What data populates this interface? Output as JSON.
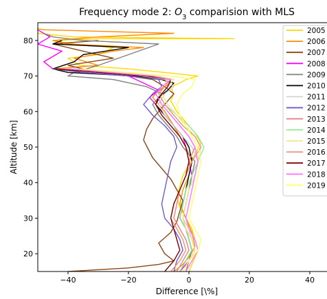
{
  "chart_data": {
    "type": "line",
    "title_prefix": "Frequency mode 2: ",
    "title_species": "O",
    "title_subscript": "3",
    "title_suffix": " comparision with MLS",
    "xlabel": "Difference [\\%]",
    "ylabel": "Altitude [km]",
    "xlim": [
      -50,
      50
    ],
    "ylim": [
      15,
      85
    ],
    "xticks": [
      -40,
      -20,
      0,
      20,
      40
    ],
    "yticks": [
      20,
      30,
      40,
      50,
      60,
      70,
      80
    ],
    "legend_position": "top-right",
    "grid": false,
    "series": [
      {
        "name": "2005",
        "color": "#FFD700",
        "x": [
          0,
          1,
          2,
          3,
          2,
          1,
          -1,
          -3,
          -4,
          -3,
          -2,
          0,
          2,
          4,
          2,
          -1,
          -4,
          -6,
          -5,
          -6,
          -3,
          -1,
          3,
          -8,
          -20,
          -36,
          -40,
          -30,
          -25,
          -38,
          -45,
          -30,
          15,
          -38,
          -50
        ],
        "y": [
          15,
          17,
          19,
          21,
          24,
          27,
          30,
          33,
          36,
          39,
          42,
          45,
          48,
          51,
          54,
          57,
          60,
          63,
          65,
          67,
          68,
          69,
          70,
          71,
          72,
          73,
          75,
          76,
          78,
          79,
          80,
          80.5,
          80.5,
          81,
          82
        ]
      },
      {
        "name": "2006",
        "color": "#FF8C00",
        "x": [
          -5,
          -2,
          0,
          2,
          1,
          -1,
          -3,
          -2,
          0,
          1,
          -1,
          -3,
          -5,
          -8,
          -10,
          -12,
          -10,
          -6,
          -12,
          -20,
          -45,
          -30,
          -38,
          -25,
          -15,
          -40,
          -45,
          -30,
          -5,
          -48,
          -55
        ],
        "y": [
          15,
          17,
          19,
          22,
          26,
          30,
          34,
          38,
          42,
          46,
          50,
          53,
          56,
          60,
          62,
          64,
          66,
          68,
          70,
          71,
          72,
          73,
          75,
          77,
          78,
          79,
          80,
          81,
          82,
          83,
          84
        ]
      },
      {
        "name": "2007",
        "color": "#8B4513",
        "x": [
          -40,
          -20,
          -10,
          -5,
          -8,
          -10,
          -6,
          -4,
          -3,
          -2,
          -4,
          -6,
          -9,
          -12,
          -15,
          -14,
          -12,
          -9,
          -7,
          -5,
          -8,
          -12,
          -20,
          -30,
          -35,
          -40,
          -25,
          -35,
          -45,
          -30
        ],
        "y": [
          15,
          16,
          17,
          18,
          20,
          23,
          26,
          29,
          32,
          35,
          38,
          41,
          44,
          47,
          52,
          55,
          58,
          61,
          63,
          65,
          67,
          69,
          70,
          71,
          72,
          73,
          75,
          77,
          79,
          80
        ]
      },
      {
        "name": "2008",
        "color": "#FF00FF",
        "x": [
          -3,
          0,
          2,
          1,
          -1,
          -2,
          -1,
          0,
          1,
          0,
          -1,
          -2,
          -5,
          -8,
          -11,
          -13,
          -10,
          -15,
          -20,
          -35,
          -45,
          -48,
          -42,
          -50,
          -46,
          -50
        ],
        "y": [
          15,
          18,
          21,
          24,
          27,
          30,
          34,
          38,
          42,
          46,
          50,
          53,
          56,
          59,
          62,
          64,
          66,
          68,
          70,
          71,
          72,
          74,
          77,
          79,
          81,
          83
        ]
      },
      {
        "name": "2009",
        "color": "#808080",
        "x": [
          -1,
          0,
          1,
          0,
          -1,
          -2,
          -1,
          0,
          1,
          2,
          0,
          -2,
          -4,
          -7,
          -10,
          -12,
          -9,
          -14,
          -25,
          -40,
          -38,
          -30,
          -20,
          -10,
          -35,
          -45,
          -48
        ],
        "y": [
          15,
          18,
          21,
          24,
          27,
          30,
          34,
          38,
          42,
          46,
          48,
          50,
          53,
          56,
          59,
          62,
          65,
          67,
          69,
          70,
          71,
          73,
          76,
          79,
          80,
          81,
          82
        ]
      },
      {
        "name": "2010",
        "color": "#000000",
        "x": [
          -3,
          -1,
          1,
          0,
          -1,
          -3,
          -2,
          -1,
          0,
          1,
          0,
          -2,
          -5,
          -8,
          -11,
          -10,
          -7,
          -5,
          -9,
          -18,
          -40,
          -45,
          -38,
          -35,
          -20,
          -45,
          -42
        ],
        "y": [
          15,
          18,
          21,
          24,
          27,
          30,
          34,
          38,
          42,
          46,
          50,
          53,
          56,
          59,
          62,
          64,
          66,
          68,
          69,
          70,
          71,
          72,
          74,
          76,
          78,
          79,
          80
        ]
      },
      {
        "name": "2011",
        "color": "#D3D3D3",
        "x": [
          -2,
          0,
          2,
          1,
          0,
          -2,
          -1,
          0,
          2,
          3,
          1,
          -2,
          -5,
          -8,
          -10,
          -8,
          -5,
          -8,
          -15,
          -30,
          -42
        ],
        "y": [
          15,
          18,
          21,
          24,
          27,
          30,
          34,
          38,
          42,
          46,
          50,
          53,
          56,
          59,
          62,
          65,
          67,
          69,
          70,
          71,
          72
        ]
      },
      {
        "name": "2012",
        "color": "#6A5ACD",
        "x": [
          -5,
          -4,
          -2,
          -3,
          -5,
          -8,
          -9,
          -8,
          -7,
          -6,
          -4,
          -5,
          -8,
          -12,
          -15,
          -12,
          -9,
          -10,
          -20,
          -35,
          -45
        ],
        "y": [
          15,
          18,
          21,
          24,
          27,
          30,
          34,
          38,
          42,
          46,
          50,
          53,
          56,
          59,
          62,
          65,
          67,
          69,
          70,
          71,
          72
        ]
      },
      {
        "name": "2013",
        "color": "#F08080",
        "x": [
          -4,
          -2,
          0,
          -1,
          -3,
          -5,
          -4,
          -3,
          -1,
          0,
          2,
          0,
          -3,
          -6,
          -9,
          -11,
          -8,
          -6,
          -12,
          -25,
          -40
        ],
        "y": [
          15,
          18,
          21,
          24,
          27,
          30,
          34,
          38,
          42,
          46,
          50,
          53,
          56,
          59,
          62,
          65,
          67,
          69,
          70,
          71,
          72
        ]
      },
      {
        "name": "2014",
        "color": "#90EE90",
        "x": [
          -3,
          -1,
          1,
          0,
          -1,
          -3,
          -2,
          -1,
          1,
          3,
          5,
          3,
          0,
          -4,
          -8,
          -10,
          -8,
          -6,
          -12,
          -25,
          -38
        ],
        "y": [
          15,
          18,
          21,
          24,
          27,
          30,
          34,
          38,
          42,
          46,
          50,
          53,
          56,
          59,
          62,
          65,
          67,
          69,
          70,
          71,
          72
        ]
      },
      {
        "name": "2015",
        "color": "#F0E68C",
        "x": [
          -2,
          0,
          2,
          1,
          -1,
          -2,
          -1,
          0,
          2,
          3,
          4,
          2,
          -1,
          -4,
          -7,
          -9,
          -7,
          -5,
          -10,
          -22,
          -35
        ],
        "y": [
          15,
          18,
          21,
          24,
          27,
          30,
          34,
          38,
          42,
          46,
          50,
          53,
          56,
          59,
          62,
          65,
          67,
          69,
          70,
          71,
          72
        ]
      },
      {
        "name": "2016",
        "color": "#E9967A",
        "x": [
          -6,
          -3,
          -1,
          -2,
          -4,
          -6,
          -5,
          -3,
          -1,
          1,
          4,
          2,
          -2,
          -5,
          -8,
          -10,
          -8,
          -6,
          -14,
          -28,
          -42
        ],
        "y": [
          15,
          18,
          21,
          24,
          27,
          30,
          34,
          38,
          42,
          46,
          50,
          53,
          56,
          59,
          62,
          65,
          67,
          69,
          70,
          71,
          72
        ]
      },
      {
        "name": "2017",
        "color": "#800000",
        "x": [
          -8,
          -5,
          -3,
          -4,
          -5,
          -6,
          -5,
          -3,
          -1,
          0,
          -1,
          -3,
          -6,
          -9,
          -11,
          -9,
          -7,
          -6,
          -14,
          -30,
          -44
        ],
        "y": [
          15,
          18,
          21,
          24,
          27,
          30,
          34,
          38,
          42,
          46,
          50,
          53,
          56,
          59,
          62,
          65,
          67,
          69,
          70,
          71,
          72
        ]
      },
      {
        "name": "2018",
        "color": "#FF77FF",
        "x": [
          -1,
          1,
          3,
          2,
          0,
          -1,
          0,
          1,
          2,
          3,
          2,
          0,
          -3,
          -6,
          -9,
          -11,
          -9,
          -6,
          -12,
          -26,
          -40
        ],
        "y": [
          15,
          18,
          21,
          24,
          27,
          30,
          34,
          38,
          42,
          46,
          50,
          53,
          56,
          59,
          62,
          65,
          67,
          69,
          70,
          71,
          72
        ]
      },
      {
        "name": "2019",
        "color": "#FFFF66",
        "x": [
          -2,
          0,
          3,
          4,
          2,
          0,
          1,
          2,
          3,
          4,
          3,
          1,
          -1,
          -3,
          -4,
          -2,
          1,
          2,
          -6,
          -20,
          -36
        ],
        "y": [
          15,
          18,
          21,
          24,
          27,
          30,
          34,
          38,
          42,
          46,
          50,
          53,
          56,
          59,
          62,
          65,
          67,
          69,
          70,
          71,
          72
        ]
      }
    ]
  }
}
